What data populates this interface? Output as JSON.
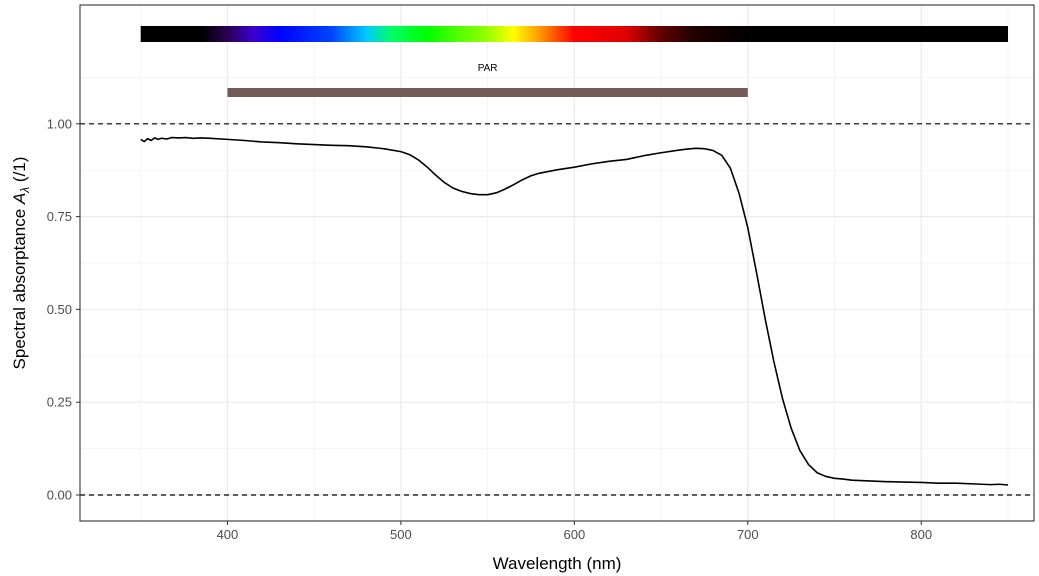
{
  "chart_data": {
    "type": "line",
    "title": "",
    "xlabel": "Wavelength (nm)",
    "ylabel_prefix": "Spectral  absorptance",
    "ylabel_symbol": "A",
    "ylabel_subscript": "λ",
    "ylabel_unit": "(/1)",
    "xlim": [
      315,
      865
    ],
    "ylim": [
      -0.07,
      1.32
    ],
    "x_ticks": [
      400,
      500,
      600,
      700,
      800
    ],
    "y_ticks": [
      0.0,
      0.25,
      0.5,
      0.75,
      1.0
    ],
    "y_tick_labels": [
      "0.00",
      "0.25",
      "0.50",
      "0.75",
      "1.00"
    ],
    "grid": true,
    "legend": "none",
    "reference_lines": [
      {
        "y": 1.0,
        "style": "dashed"
      },
      {
        "y": 0.0,
        "style": "dashed"
      }
    ],
    "color_bar": {
      "from": 350,
      "to": 850
    },
    "annotation_bar": {
      "label": "PAR",
      "from": 400,
      "to": 700,
      "color": "#735c57"
    },
    "series": [
      {
        "color": "#000000",
        "x": [
          350,
          352,
          354,
          356,
          358,
          360,
          362,
          365,
          368,
          372,
          376,
          380,
          385,
          390,
          400,
          410,
          420,
          430,
          440,
          450,
          460,
          470,
          480,
          490,
          500,
          505,
          510,
          515,
          520,
          525,
          530,
          535,
          540,
          545,
          550,
          555,
          560,
          565,
          570,
          575,
          580,
          590,
          600,
          610,
          620,
          630,
          640,
          650,
          660,
          665,
          670,
          675,
          680,
          685,
          690,
          695,
          700,
          705,
          710,
          715,
          720,
          725,
          730,
          735,
          740,
          745,
          750,
          755,
          760,
          770,
          780,
          790,
          800,
          810,
          820,
          830,
          840,
          845,
          850
        ],
        "y": [
          0.958,
          0.952,
          0.96,
          0.955,
          0.962,
          0.958,
          0.961,
          0.959,
          0.963,
          0.962,
          0.963,
          0.961,
          0.962,
          0.961,
          0.958,
          0.955,
          0.951,
          0.949,
          0.946,
          0.944,
          0.942,
          0.941,
          0.938,
          0.933,
          0.925,
          0.917,
          0.903,
          0.884,
          0.862,
          0.842,
          0.827,
          0.818,
          0.812,
          0.809,
          0.809,
          0.814,
          0.824,
          0.836,
          0.849,
          0.86,
          0.867,
          0.876,
          0.883,
          0.892,
          0.899,
          0.904,
          0.914,
          0.922,
          0.929,
          0.932,
          0.934,
          0.933,
          0.928,
          0.915,
          0.88,
          0.812,
          0.72,
          0.6,
          0.475,
          0.36,
          0.26,
          0.18,
          0.12,
          0.082,
          0.06,
          0.05,
          0.045,
          0.043,
          0.04,
          0.038,
          0.036,
          0.035,
          0.034,
          0.032,
          0.032,
          0.03,
          0.028,
          0.029,
          0.027
        ]
      }
    ]
  }
}
